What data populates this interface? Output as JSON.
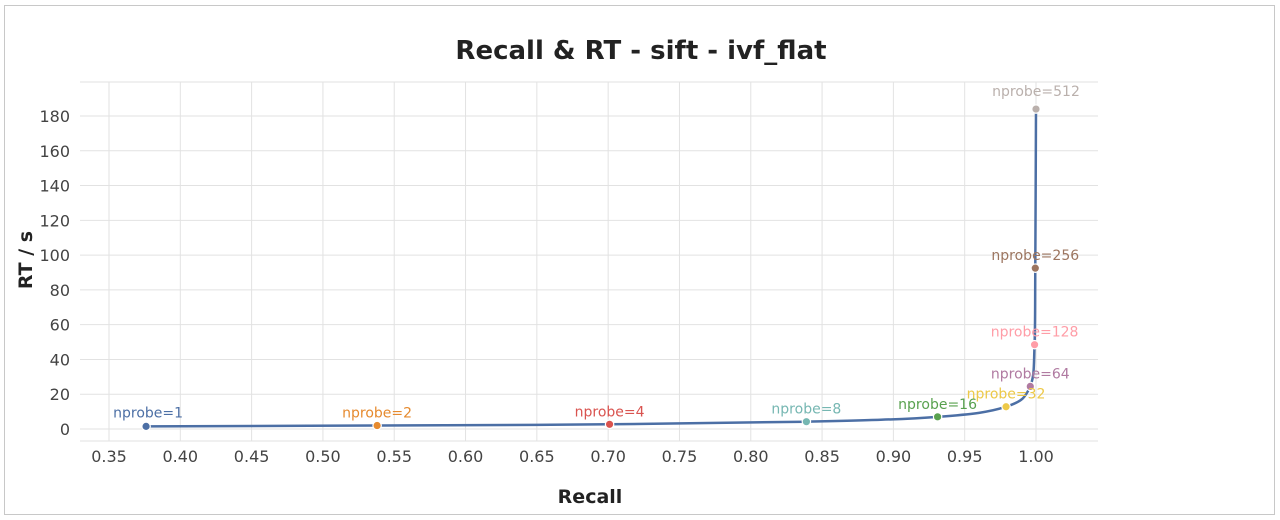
{
  "chart_data": {
    "type": "line",
    "title": "Recall & RT - sift - ivf_flat",
    "xlabel": "Recall",
    "ylabel": "RT / s",
    "xlim": [
      0.35,
      1.0
    ],
    "ylim": [
      0,
      180
    ],
    "x_ticks": [
      "0.35",
      "0.40",
      "0.45",
      "0.50",
      "0.55",
      "0.60",
      "0.65",
      "0.70",
      "0.75",
      "0.80",
      "0.85",
      "0.90",
      "0.95",
      "1.00"
    ],
    "y_ticks": [
      "0",
      "20",
      "40",
      "60",
      "80",
      "100",
      "120",
      "140",
      "160",
      "180"
    ],
    "grid": true,
    "line_color": "#4c6fa5",
    "points": [
      {
        "label": "nprobe=1",
        "x": 0.376,
        "y": 1.5,
        "color": "#4c6fa5"
      },
      {
        "label": "nprobe=2",
        "x": 0.538,
        "y": 2.0,
        "color": "#e68a2e"
      },
      {
        "label": "nprobe=4",
        "x": 0.701,
        "y": 2.7,
        "color": "#d9534f"
      },
      {
        "label": "nprobe=8",
        "x": 0.839,
        "y": 4.2,
        "color": "#76b7b2"
      },
      {
        "label": "nprobe=16",
        "x": 0.931,
        "y": 7.0,
        "color": "#59a14f"
      },
      {
        "label": "nprobe=32",
        "x": 0.979,
        "y": 12.8,
        "color": "#edc948"
      },
      {
        "label": "nprobe=64",
        "x": 0.996,
        "y": 24.5,
        "color": "#b07aa1"
      },
      {
        "label": "nprobe=128",
        "x": 0.999,
        "y": 48.5,
        "color": "#ff9da7"
      },
      {
        "label": "nprobe=256",
        "x": 0.9995,
        "y": 92.5,
        "color": "#9c755f"
      },
      {
        "label": "nprobe=512",
        "x": 1.0,
        "y": 184.0,
        "color": "#bab0ac"
      }
    ]
  }
}
